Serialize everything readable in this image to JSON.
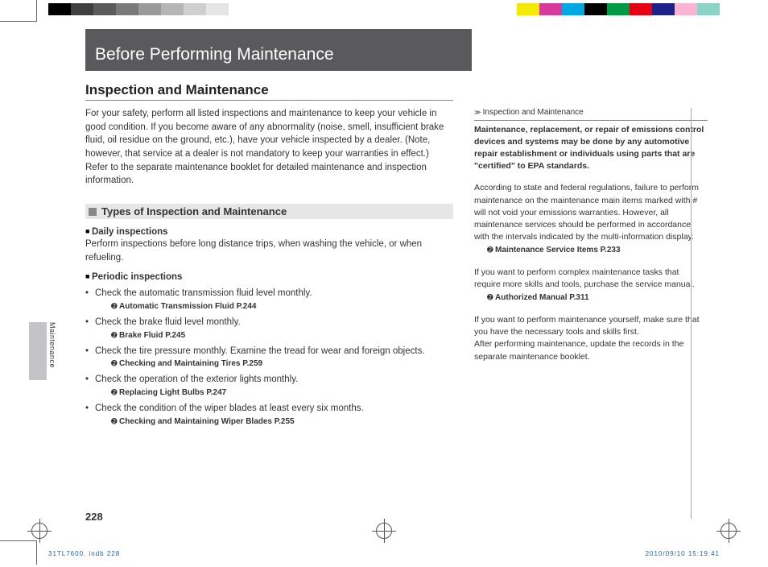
{
  "colorbar_left": [
    "#000000",
    "#3f3f3f",
    "#5b5b5b",
    "#7a7a7a",
    "#9a9a9a",
    "#b5b5b5",
    "#cfcfcf",
    "#e5e5e5",
    "#ffffff"
  ],
  "colorbar_right": [
    "#ffffff",
    "#f2ea00",
    "#d63a9a",
    "#00a7e1",
    "#000000",
    "#009944",
    "#e60012",
    "#1d2088",
    "#f8b4d0",
    "#8bd3c7"
  ],
  "banner": "Before Performing Maintenance",
  "section": "Inspection and Maintenance",
  "intro": "For your safety, perform all listed inspections and maintenance to keep your vehicle in good condition. If you become aware of any abnormality (noise, smell, insufficient brake fluid, oil residue on the ground, etc.), have your vehicle inspected by a dealer. (Note, however, that service at a dealer is not mandatory to keep your warranties in effect.) Refer to the separate maintenance booklet for detailed maintenance and inspection information.",
  "sub": "Types of Inspection and Maintenance",
  "daily_h": "Daily inspections",
  "daily_t": "Perform inspections before long distance trips, when washing the vehicle, or when refueling.",
  "periodic_h": "Periodic inspections",
  "items": [
    {
      "t": "Check the automatic transmission fluid level monthly.",
      "r": "Automatic Transmission Fluid P.244"
    },
    {
      "t": "Check the brake fluid level monthly.",
      "r": "Brake Fluid P.245"
    },
    {
      "t": "Check the tire pressure monthly. Examine the tread for wear and foreign objects.",
      "r": "Checking and Maintaining Tires P.259"
    },
    {
      "t": "Check the operation of the exterior lights monthly.",
      "r": "Replacing Light Bulbs P.247"
    },
    {
      "t": "Check the condition of the wiper blades at least every six months.",
      "r": "Checking and Maintaining Wiper Blades P.255"
    }
  ],
  "side_hdr": "Inspection and Maintenance",
  "side_bold": "Maintenance, replacement, or repair of emissions control devices and systems may be done by any automotive repair establishment or individuals using parts that are \"certified\" to EPA standards.",
  "side_p1": "According to state and federal regulations, failure to perform maintenance on the maintenance main items marked with # will not void your emissions warranties. However, all maintenance services should be performed in accordance with the intervals indicated by the multi-information display.",
  "side_r1": "Maintenance Service Items P.233",
  "side_p2": "If you want to perform complex maintenance tasks that require more skills and tools, purchase the service manual.",
  "side_r2": "Authorized Manual P.311",
  "side_p3": "If you want to perform maintenance yourself, make sure that you have the necessary tools and skills first.",
  "side_p4": "After performing maintenance, update the records in the separate maintenance booklet.",
  "tab": "Maintenance",
  "pagenum": "228",
  "footer_l": "31TL7600. indb   228",
  "footer_r": "2010/09/10   15:19:41"
}
